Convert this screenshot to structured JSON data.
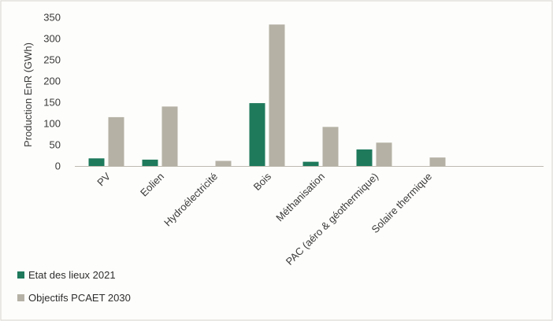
{
  "chart_data": {
    "type": "bar",
    "ylabel": "Production EnR (GWh)",
    "xlabel": "",
    "ylim": [
      0,
      350
    ],
    "yticks": [
      0,
      50,
      100,
      150,
      200,
      250,
      300,
      350
    ],
    "grid": false,
    "legend_position": "bottom-left",
    "categories": [
      "PV",
      "Eolien",
      "Hydroélectricité",
      "Bois",
      "Méthanisation",
      "PAC (aéro & géothermique)",
      "Solaire thermique"
    ],
    "series": [
      {
        "name": "Etat des lieux 2021",
        "color": "#1f7a5c",
        "values": [
          18,
          15,
          0,
          148,
          10,
          39,
          0
        ]
      },
      {
        "name": "Objectifs PCAET 2030",
        "color": "#b5b1a5",
        "values": [
          115,
          140,
          12,
          333,
          92,
          55,
          20
        ]
      }
    ]
  }
}
